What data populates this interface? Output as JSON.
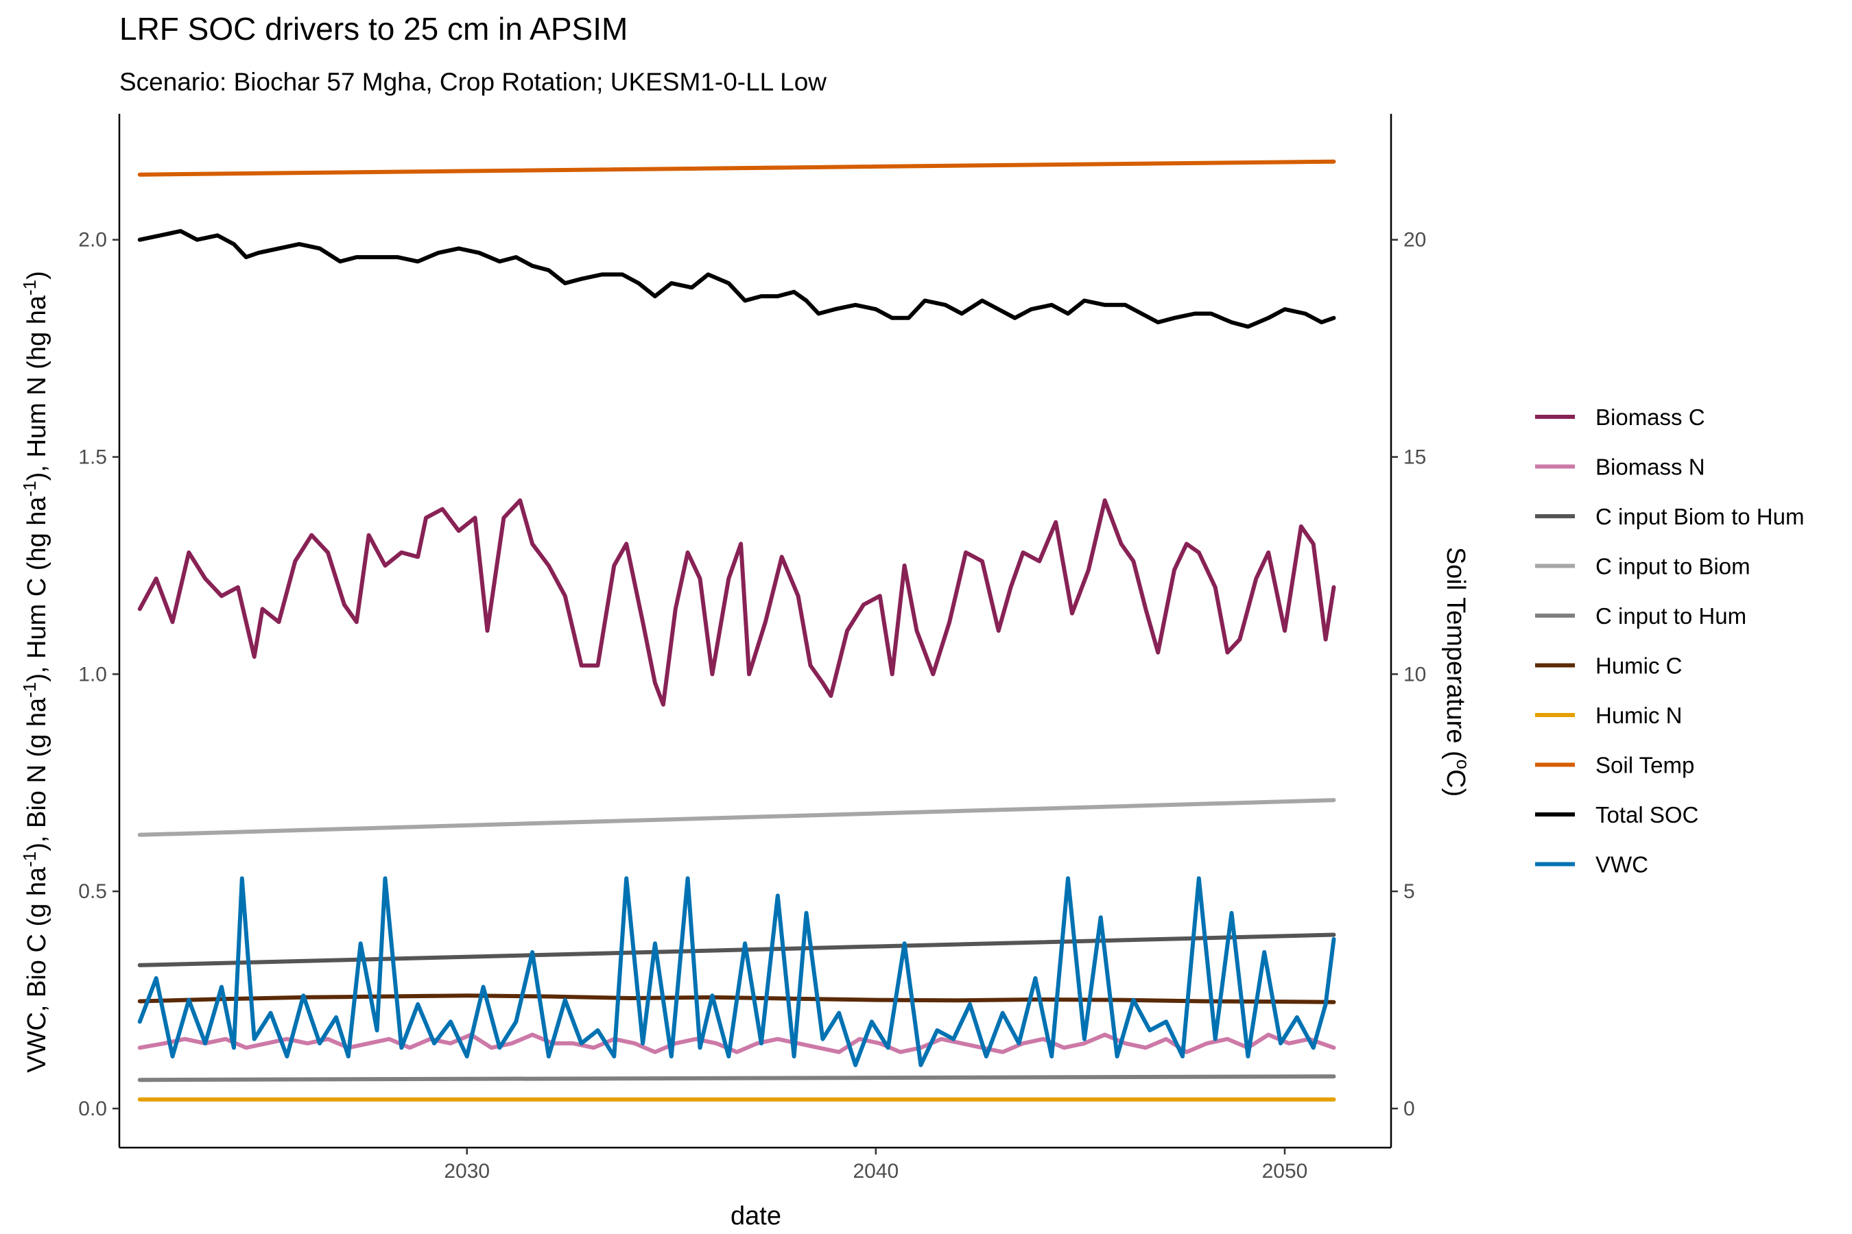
{
  "chart_data": {
    "type": "line",
    "title": "LRF SOC drivers to 25 cm in APSIM",
    "subtitle": "Scenario: Biochar 57 Mgha, Crop Rotation; UKESM1-0-LL Low",
    "xlabel": "date",
    "ylabel": {
      "text": "VWC, Bio C (g ha-1), Bio N (g ha-1), Hum C (hg ha-1), Hum N (hg ha-1)",
      "parts": [
        {
          "t": "VWC, Bio C (g ha",
          "sup": false
        },
        {
          "t": "-1",
          "sup": true
        },
        {
          "t": "), Bio N (g ha",
          "sup": false
        },
        {
          "t": "-1",
          "sup": true
        },
        {
          "t": "), Hum C (hg ha",
          "sup": false
        },
        {
          "t": "-1",
          "sup": true
        },
        {
          "t": "), Hum N (hg ha",
          "sup": false
        },
        {
          "t": "-1",
          "sup": true
        },
        {
          "t": ")",
          "sup": false
        }
      ]
    },
    "y2label": {
      "text": "Soil Temperature (oC)",
      "parts": [
        {
          "t": "Soil Temperature (",
          "sup": false
        },
        {
          "t": "o",
          "sup": true
        },
        {
          "t": "C)",
          "sup": false
        }
      ]
    },
    "xlim": [
      2021.5,
      2052.6
    ],
    "ylim": [
      -0.09,
      2.29
    ],
    "y2lim": [
      -0.9,
      22.9
    ],
    "xticks": [
      2030,
      2040,
      2050
    ],
    "xtick_labels": [
      "2030",
      "2040",
      "2050"
    ],
    "yticks": [
      0.0,
      0.5,
      1.0,
      1.5,
      2.0
    ],
    "ytick_labels": [
      "0.0",
      "0.5",
      "1.0",
      "1.5",
      "2.0"
    ],
    "y2ticks": [
      0,
      5,
      10,
      15,
      20
    ],
    "y2tick_labels": [
      "0",
      "5",
      "10",
      "15",
      "20"
    ],
    "grid": false,
    "legend": "right",
    "series": [
      {
        "name": "Biomass C",
        "color": "#882255",
        "x": [
          2022.0,
          2022.4,
          2022.8,
          2023.2,
          2023.6,
          2024.0,
          2024.4,
          2024.8,
          2025.0,
          2025.4,
          2025.8,
          2026.2,
          2026.6,
          2027.0,
          2027.3,
          2027.6,
          2028.0,
          2028.4,
          2028.8,
          2029.0,
          2029.4,
          2029.8,
          2030.2,
          2030.5,
          2030.9,
          2031.3,
          2031.6,
          2032.0,
          2032.4,
          2032.8,
          2033.2,
          2033.6,
          2033.9,
          2034.3,
          2034.6,
          2034.8,
          2035.1,
          2035.4,
          2035.7,
          2036.0,
          2036.4,
          2036.7,
          2036.9,
          2037.3,
          2037.7,
          2038.1,
          2038.4,
          2038.7,
          2038.9,
          2039.3,
          2039.7,
          2040.1,
          2040.4,
          2040.7,
          2041.0,
          2041.4,
          2041.8,
          2042.2,
          2042.6,
          2043.0,
          2043.3,
          2043.6,
          2044.0,
          2044.4,
          2044.8,
          2045.2,
          2045.6,
          2046.0,
          2046.3,
          2046.6,
          2046.9,
          2047.3,
          2047.6,
          2047.9,
          2048.3,
          2048.6,
          2048.9,
          2049.3,
          2049.6,
          2050.0,
          2050.4,
          2050.7,
          2051.0,
          2051.2
        ],
        "y": [
          1.15,
          1.22,
          1.12,
          1.28,
          1.22,
          1.18,
          1.2,
          1.04,
          1.15,
          1.12,
          1.26,
          1.32,
          1.28,
          1.16,
          1.12,
          1.32,
          1.25,
          1.28,
          1.27,
          1.36,
          1.38,
          1.33,
          1.36,
          1.1,
          1.36,
          1.4,
          1.3,
          1.25,
          1.18,
          1.02,
          1.02,
          1.25,
          1.3,
          1.12,
          0.98,
          0.93,
          1.15,
          1.28,
          1.22,
          1.0,
          1.22,
          1.3,
          1.0,
          1.12,
          1.27,
          1.18,
          1.02,
          0.98,
          0.95,
          1.1,
          1.16,
          1.18,
          1.0,
          1.25,
          1.1,
          1.0,
          1.12,
          1.28,
          1.26,
          1.1,
          1.2,
          1.28,
          1.26,
          1.35,
          1.14,
          1.24,
          1.4,
          1.3,
          1.26,
          1.15,
          1.05,
          1.24,
          1.3,
          1.28,
          1.2,
          1.05,
          1.08,
          1.22,
          1.28,
          1.1,
          1.34,
          1.3,
          1.08,
          1.2
        ]
      },
      {
        "name": "Biomass N",
        "color": "#CC79A7",
        "x": [
          2022.0,
          2022.6,
          2023.1,
          2023.6,
          2024.1,
          2024.6,
          2025.1,
          2025.6,
          2026.1,
          2026.6,
          2027.1,
          2027.6,
          2028.1,
          2028.6,
          2029.1,
          2029.6,
          2030.1,
          2030.6,
          2031.1,
          2031.6,
          2032.1,
          2032.6,
          2033.1,
          2033.6,
          2034.1,
          2034.6,
          2035.1,
          2035.6,
          2036.1,
          2036.6,
          2037.1,
          2037.6,
          2038.1,
          2038.6,
          2039.1,
          2039.6,
          2040.1,
          2040.6,
          2041.1,
          2041.6,
          2042.1,
          2042.6,
          2043.1,
          2043.6,
          2044.1,
          2044.6,
          2045.1,
          2045.6,
          2046.1,
          2046.6,
          2047.1,
          2047.6,
          2048.1,
          2048.6,
          2049.1,
          2049.6,
          2050.1,
          2050.6,
          2051.2
        ],
        "y": [
          0.14,
          0.15,
          0.16,
          0.15,
          0.16,
          0.14,
          0.15,
          0.16,
          0.15,
          0.16,
          0.14,
          0.15,
          0.16,
          0.14,
          0.16,
          0.15,
          0.17,
          0.14,
          0.15,
          0.17,
          0.15,
          0.15,
          0.14,
          0.16,
          0.15,
          0.13,
          0.15,
          0.16,
          0.15,
          0.13,
          0.15,
          0.16,
          0.15,
          0.14,
          0.13,
          0.16,
          0.15,
          0.13,
          0.14,
          0.16,
          0.15,
          0.14,
          0.13,
          0.15,
          0.16,
          0.14,
          0.15,
          0.17,
          0.15,
          0.14,
          0.16,
          0.13,
          0.15,
          0.16,
          0.14,
          0.17,
          0.15,
          0.16,
          0.14
        ]
      },
      {
        "name": "C input Biom to Hum",
        "color": "#555555",
        "x": [
          2022.0,
          2051.2
        ],
        "y": [
          0.33,
          0.4
        ]
      },
      {
        "name": "C input to Biom",
        "color": "#a6a6a6",
        "x": [
          2022.0,
          2051.2
        ],
        "y": [
          0.63,
          0.71
        ]
      },
      {
        "name": "C input to Hum",
        "color": "#7f7f7f",
        "x": [
          2022.0,
          2051.2
        ],
        "y": [
          0.066,
          0.074
        ]
      },
      {
        "name": "Humic C",
        "color": "#5b2a06",
        "x": [
          2022.0,
          2024.0,
          2026.0,
          2028.0,
          2030.0,
          2032.0,
          2034.0,
          2036.0,
          2038.0,
          2040.0,
          2042.0,
          2044.0,
          2046.0,
          2048.0,
          2050.0,
          2051.2
        ],
        "y": [
          0.247,
          0.252,
          0.256,
          0.258,
          0.26,
          0.258,
          0.254,
          0.256,
          0.253,
          0.25,
          0.249,
          0.251,
          0.25,
          0.247,
          0.246,
          0.245
        ]
      },
      {
        "name": "Humic N",
        "color": "#E69F00",
        "x": [
          2022.0,
          2051.2
        ],
        "y": [
          0.021,
          0.021
        ]
      },
      {
        "name": "Soil Temp",
        "axis": "right",
        "color": "#D55E00",
        "x": [
          2022.0,
          2051.2
        ],
        "y": [
          21.5,
          21.8
        ]
      },
      {
        "name": "Total SOC",
        "color": "#000000",
        "x": [
          2022.0,
          2022.5,
          2023.0,
          2023.4,
          2023.9,
          2024.3,
          2024.6,
          2024.9,
          2025.4,
          2025.9,
          2026.4,
          2026.9,
          2027.3,
          2027.8,
          2028.3,
          2028.8,
          2029.3,
          2029.8,
          2030.3,
          2030.8,
          2031.2,
          2031.6,
          2032.0,
          2032.4,
          2032.8,
          2033.3,
          2033.8,
          2034.2,
          2034.6,
          2035.0,
          2035.5,
          2035.9,
          2036.4,
          2036.8,
          2037.2,
          2037.6,
          2038.0,
          2038.3,
          2038.6,
          2039.0,
          2039.5,
          2040.0,
          2040.4,
          2040.8,
          2041.2,
          2041.7,
          2042.1,
          2042.6,
          2043.0,
          2043.4,
          2043.8,
          2044.3,
          2044.7,
          2045.1,
          2045.6,
          2046.1,
          2046.5,
          2046.9,
          2047.3,
          2047.8,
          2048.2,
          2048.7,
          2049.1,
          2049.6,
          2050.0,
          2050.5,
          2050.9,
          2051.2
        ],
        "y": [
          2.0,
          2.01,
          2.02,
          2.0,
          2.01,
          1.99,
          1.96,
          1.97,
          1.98,
          1.99,
          1.98,
          1.95,
          1.96,
          1.96,
          1.96,
          1.95,
          1.97,
          1.98,
          1.97,
          1.95,
          1.96,
          1.94,
          1.93,
          1.9,
          1.91,
          1.92,
          1.92,
          1.9,
          1.87,
          1.9,
          1.89,
          1.92,
          1.9,
          1.86,
          1.87,
          1.87,
          1.88,
          1.86,
          1.83,
          1.84,
          1.85,
          1.84,
          1.82,
          1.82,
          1.86,
          1.85,
          1.83,
          1.86,
          1.84,
          1.82,
          1.84,
          1.85,
          1.83,
          1.86,
          1.85,
          1.85,
          1.83,
          1.81,
          1.82,
          1.83,
          1.83,
          1.81,
          1.8,
          1.82,
          1.84,
          1.83,
          1.81,
          1.82
        ]
      },
      {
        "name": "VWC",
        "color": "#0072B2",
        "x": [
          2022.0,
          2022.4,
          2022.8,
          2023.2,
          2023.6,
          2024.0,
          2024.3,
          2024.5,
          2024.8,
          2025.2,
          2025.6,
          2026.0,
          2026.4,
          2026.8,
          2027.1,
          2027.4,
          2027.8,
          2028.0,
          2028.4,
          2028.8,
          2029.2,
          2029.6,
          2030.0,
          2030.4,
          2030.8,
          2031.2,
          2031.6,
          2032.0,
          2032.4,
          2032.8,
          2033.2,
          2033.6,
          2033.9,
          2034.3,
          2034.6,
          2035.0,
          2035.4,
          2035.7,
          2036.0,
          2036.4,
          2036.8,
          2037.2,
          2037.6,
          2038.0,
          2038.3,
          2038.7,
          2039.1,
          2039.5,
          2039.9,
          2040.3,
          2040.7,
          2041.1,
          2041.5,
          2041.9,
          2042.3,
          2042.7,
          2043.1,
          2043.5,
          2043.9,
          2044.3,
          2044.7,
          2045.1,
          2045.5,
          2045.9,
          2046.3,
          2046.7,
          2047.1,
          2047.5,
          2047.9,
          2048.3,
          2048.7,
          2049.1,
          2049.5,
          2049.9,
          2050.3,
          2050.7,
          2051.0,
          2051.2
        ],
        "y": [
          0.2,
          0.3,
          0.12,
          0.25,
          0.15,
          0.28,
          0.14,
          0.53,
          0.16,
          0.22,
          0.12,
          0.26,
          0.15,
          0.21,
          0.12,
          0.38,
          0.18,
          0.53,
          0.14,
          0.24,
          0.15,
          0.2,
          0.12,
          0.28,
          0.14,
          0.2,
          0.36,
          0.12,
          0.25,
          0.15,
          0.18,
          0.12,
          0.53,
          0.15,
          0.38,
          0.12,
          0.53,
          0.14,
          0.26,
          0.12,
          0.38,
          0.15,
          0.49,
          0.12,
          0.45,
          0.16,
          0.22,
          0.1,
          0.2,
          0.14,
          0.38,
          0.1,
          0.18,
          0.16,
          0.24,
          0.12,
          0.22,
          0.15,
          0.3,
          0.12,
          0.53,
          0.16,
          0.44,
          0.12,
          0.25,
          0.18,
          0.2,
          0.12,
          0.53,
          0.16,
          0.45,
          0.12,
          0.36,
          0.15,
          0.21,
          0.14,
          0.24,
          0.39
        ]
      }
    ]
  }
}
